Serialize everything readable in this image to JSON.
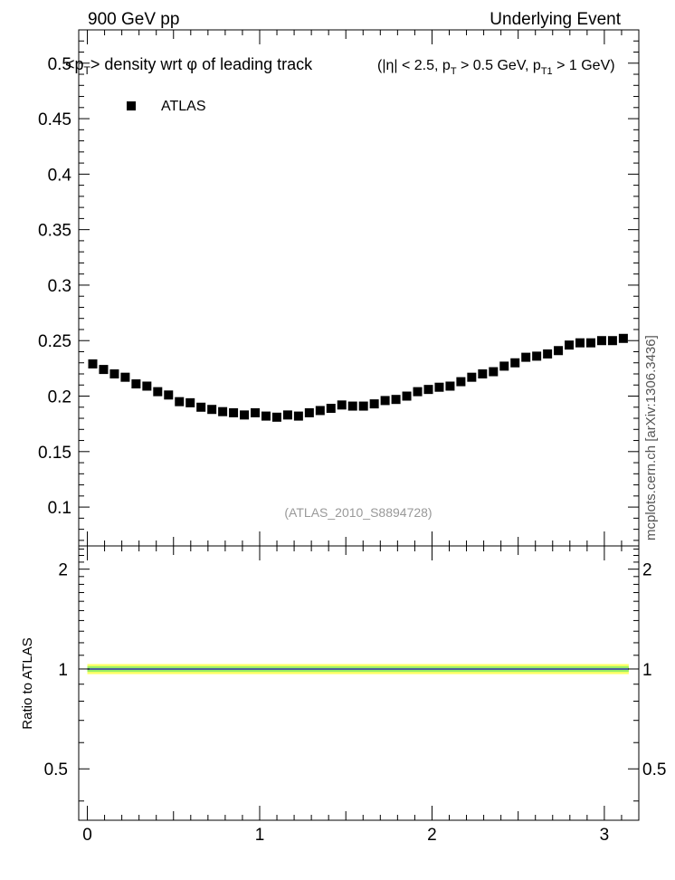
{
  "header": {
    "left": "900 GeV pp",
    "right": "Underlying Event"
  },
  "side_label": "mcplots.cern.ch [arXiv:1306.3436]",
  "chart_data": [
    {
      "type": "scatter",
      "title_main": {
        "pre": "<p",
        "pre_sub": "T",
        "mid": "> density wrt  φ of leading track"
      },
      "title_cuts": {
        "t1": "(|η| < 2.5, p",
        "s1": "T",
        "t2": " > 0.5 GeV, p",
        "s2": "T1",
        "t3": " > 1 GeV)"
      },
      "annotation": "(ATLAS_2010_S8894728)",
      "legend": [
        {
          "name": "ATLAS",
          "marker": "square",
          "color": "#000000"
        }
      ],
      "legend_position": "top-left",
      "xlim": [
        -0.05,
        3.2
      ],
      "ylim": [
        0.065,
        0.53
      ],
      "y_ticks": [
        0.1,
        0.15,
        0.2,
        0.25,
        0.3,
        0.35,
        0.4,
        0.45,
        0.5
      ],
      "y_tick_labels": [
        "0.1",
        "0.15",
        "0.2",
        "0.25",
        "0.3",
        "0.35",
        "0.4",
        "0.45",
        "0.5"
      ],
      "x_ticks": [
        0,
        1,
        2,
        3
      ],
      "series": [
        {
          "name": "ATLAS",
          "x": [
            0.0314,
            0.0942,
            0.1571,
            0.2199,
            0.2827,
            0.3456,
            0.4084,
            0.4712,
            0.5341,
            0.5969,
            0.6597,
            0.7226,
            0.7854,
            0.8482,
            0.9111,
            0.9739,
            1.0367,
            1.0996,
            1.1624,
            1.2252,
            1.2881,
            1.3509,
            1.4137,
            1.4765,
            1.5394,
            1.6022,
            1.665,
            1.7279,
            1.7907,
            1.8535,
            1.9164,
            1.9792,
            2.042,
            2.1049,
            2.1677,
            2.2305,
            2.2934,
            2.3562,
            2.419,
            2.4819,
            2.5447,
            2.6075,
            2.6704,
            2.7332,
            2.796,
            2.8588,
            2.9217,
            2.9845,
            3.0473,
            3.1102
          ],
          "y": [
            0.229,
            0.224,
            0.22,
            0.217,
            0.211,
            0.209,
            0.204,
            0.201,
            0.195,
            0.194,
            0.19,
            0.188,
            0.186,
            0.185,
            0.183,
            0.185,
            0.182,
            0.181,
            0.183,
            0.182,
            0.185,
            0.187,
            0.189,
            0.192,
            0.191,
            0.191,
            0.193,
            0.196,
            0.197,
            0.2,
            0.204,
            0.206,
            0.208,
            0.209,
            0.213,
            0.217,
            0.22,
            0.222,
            0.227,
            0.23,
            0.235,
            0.236,
            0.238,
            0.241,
            0.246,
            0.248,
            0.248,
            0.25,
            0.25,
            0.252
          ]
        }
      ]
    },
    {
      "type": "area",
      "ylabel": "Ratio to ATLAS",
      "xlim": [
        -0.05,
        3.2
      ],
      "ylim": [
        0.35,
        2.35
      ],
      "y_ticks": [
        0.5,
        1,
        2
      ],
      "y_tick_labels": [
        "0.5",
        "1",
        "2"
      ],
      "x_ticks": [
        0,
        1,
        2,
        3
      ],
      "x_tick_labels": [
        "0",
        "1",
        "2",
        "3"
      ],
      "bands": [
        {
          "kind": "outer",
          "low": 0.965,
          "high": 1.035,
          "color": "#ffff66"
        },
        {
          "kind": "inner",
          "low": 0.98,
          "high": 1.02,
          "color": "#99ee66"
        }
      ],
      "reference_line": {
        "value": 1.0,
        "color": "#3333aa"
      }
    }
  ]
}
